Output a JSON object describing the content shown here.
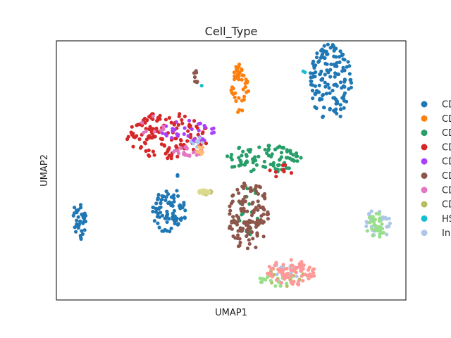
{
  "chart_data": {
    "type": "scatter",
    "title": "Cell_Type",
    "xlabel": "UMAP1",
    "ylabel": "UMAP2",
    "xlim": [
      0,
      100
    ],
    "ylim": [
      0,
      100
    ],
    "grid": false,
    "ticks": false,
    "legend_position": "right (outside plot, clipped)",
    "series": [
      {
        "name": "CD",
        "color": "#1f77b4",
        "clusters": [
          {
            "cx": 78.5,
            "cy": 84.0,
            "rx": 6.0,
            "ry": 15.0,
            "n": 150
          },
          {
            "cx": 32.0,
            "cy": 34.0,
            "rx": 5.0,
            "ry": 8.0,
            "n": 85
          },
          {
            "cx": 6.5,
            "cy": 30.0,
            "rx": 2.0,
            "ry": 8.0,
            "n": 35
          },
          {
            "cx": 34.5,
            "cy": 45.0,
            "rx": 0.5,
            "ry": 4.0,
            "n": 3
          }
        ]
      },
      {
        "name": "CD",
        "color": "#ff7f0e",
        "clusters": [
          {
            "cx": 52.5,
            "cy": 81.0,
            "rx": 2.5,
            "ry": 10.0,
            "n": 45
          }
        ]
      },
      {
        "name": "CD",
        "color": "#279e68",
        "clusters": [
          {
            "cx": 59.0,
            "cy": 54.5,
            "rx": 11.0,
            "ry": 5.5,
            "n": 90
          },
          {
            "cx": 55.0,
            "cy": 35.0,
            "rx": 4.0,
            "ry": 10.0,
            "n": 20
          }
        ]
      },
      {
        "name": "CD",
        "color": "#d62728",
        "clusters": [
          {
            "cx": 32.0,
            "cy": 63.5,
            "rx": 12.0,
            "ry": 9.0,
            "n": 130
          },
          {
            "cx": 65.0,
            "cy": 50.0,
            "rx": 4.0,
            "ry": 3.0,
            "n": 8
          }
        ]
      },
      {
        "name": "CD",
        "color": "#aa40fc",
        "clusters": [
          {
            "cx": 38.0,
            "cy": 65.0,
            "rx": 8.0,
            "ry": 5.0,
            "n": 35
          }
        ]
      },
      {
        "name": "CD",
        "color": "#8c564b",
        "clusters": [
          {
            "cx": 55.0,
            "cy": 33.0,
            "rx": 6.0,
            "ry": 14.0,
            "n": 130
          },
          {
            "cx": 40.0,
            "cy": 86.0,
            "rx": 0.8,
            "ry": 2.5,
            "n": 8
          }
        ]
      },
      {
        "name": "CD",
        "color": "#e377c2",
        "clusters": [
          {
            "cx": 38.0,
            "cy": 57.5,
            "rx": 4.5,
            "ry": 2.0,
            "n": 25
          },
          {
            "cx": 27.0,
            "cy": 67.0,
            "rx": 4.0,
            "ry": 4.0,
            "n": 8
          }
        ]
      },
      {
        "name": "CD",
        "color": "#b5bd61",
        "clusters": [
          {
            "cx": 42.5,
            "cy": 41.5,
            "rx": 2.0,
            "ry": 1.0,
            "n": 10
          },
          {
            "cx": 65.0,
            "cy": 9.0,
            "rx": 6.0,
            "ry": 4.0,
            "n": 20
          }
        ]
      },
      {
        "name": "HS",
        "color": "#17becf",
        "clusters": [
          {
            "cx": 41.5,
            "cy": 82.5,
            "rx": 0.3,
            "ry": 0.3,
            "n": 1
          },
          {
            "cx": 71.0,
            "cy": 88.0,
            "rx": 0.5,
            "ry": 0.5,
            "n": 2
          }
        ]
      },
      {
        "name": "In",
        "color": "#aec7e8",
        "clusters": [
          {
            "cx": 92.0,
            "cy": 29.5,
            "rx": 3.5,
            "ry": 6.0,
            "n": 30
          },
          {
            "cx": 65.0,
            "cy": 10.5,
            "rx": 6.0,
            "ry": 4.0,
            "n": 15
          },
          {
            "cx": 40.0,
            "cy": 60.0,
            "rx": 2.0,
            "ry": 3.0,
            "n": 8
          }
        ]
      },
      {
        "name": "",
        "color": "#98df8a",
        "clusters": [
          {
            "cx": 91.5,
            "cy": 28.5,
            "rx": 3.0,
            "ry": 5.0,
            "n": 30
          },
          {
            "cx": 63.0,
            "cy": 8.0,
            "rx": 5.0,
            "ry": 3.0,
            "n": 15
          }
        ]
      },
      {
        "name": "",
        "color": "#ff9896",
        "clusters": [
          {
            "cx": 67.0,
            "cy": 10.5,
            "rx": 7.0,
            "ry": 5.0,
            "n": 70
          }
        ]
      },
      {
        "name": "",
        "color": "#dbdb8d",
        "clusters": [
          {
            "cx": 42.5,
            "cy": 41.5,
            "rx": 2.0,
            "ry": 1.0,
            "n": 15
          }
        ]
      },
      {
        "name": "",
        "color": "#ffbb78",
        "clusters": [
          {
            "cx": 41.0,
            "cy": 58.0,
            "rx": 1.0,
            "ry": 2.5,
            "n": 10
          }
        ]
      }
    ],
    "legend": [
      {
        "label": "CD",
        "color": "#1f77b4"
      },
      {
        "label": "CD",
        "color": "#ff7f0e"
      },
      {
        "label": "CD",
        "color": "#279e68"
      },
      {
        "label": "CD",
        "color": "#d62728"
      },
      {
        "label": "CD",
        "color": "#aa40fc"
      },
      {
        "label": "CD",
        "color": "#8c564b"
      },
      {
        "label": "CD",
        "color": "#e377c2"
      },
      {
        "label": "CD",
        "color": "#b5bd61"
      },
      {
        "label": "HS",
        "color": "#17becf"
      },
      {
        "label": "In",
        "color": "#aec7e8"
      }
    ]
  }
}
